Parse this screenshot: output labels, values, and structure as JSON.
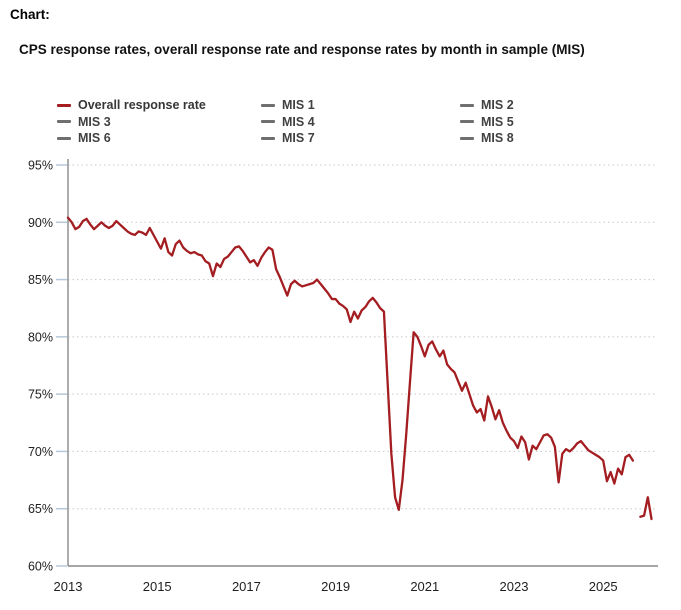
{
  "page": {
    "label": "Chart:"
  },
  "chart": {
    "title": "CPS response rates, overall response rate and response rates by month in sample (MIS)",
    "legend": [
      {
        "label": "Overall response rate",
        "color": "#A31D21",
        "plotted": true
      },
      {
        "label": "MIS 1",
        "color": "#6F6F6F",
        "plotted": false
      },
      {
        "label": "MIS 2",
        "color": "#6F6F6F",
        "plotted": false
      },
      {
        "label": "MIS 3",
        "color": "#6F6F6F",
        "plotted": false
      },
      {
        "label": "MIS 4",
        "color": "#6F6F6F",
        "plotted": false
      },
      {
        "label": "MIS 5",
        "color": "#6F6F6F",
        "plotted": false
      },
      {
        "label": "MIS 6",
        "color": "#6F6F6F",
        "plotted": false
      },
      {
        "label": "MIS 7",
        "color": "#6F6F6F",
        "plotted": false
      },
      {
        "label": "MIS 8",
        "color": "#6F6F6F",
        "plotted": false
      }
    ],
    "colors": {
      "line": "#A31D21",
      "axis": "#898989",
      "gridline": "#C8C8C8",
      "tick_mark": "#B5C7D8",
      "tick_text": "#1F1F1F"
    }
  },
  "chart_data": {
    "type": "line",
    "title": "CPS response rates, overall response rate and response rates by month in sample (MIS)",
    "xlabel": "",
    "ylabel": "",
    "y_unit": "%",
    "ylim": [
      60,
      95
    ],
    "y_ticks": [
      60,
      65,
      70,
      75,
      80,
      85,
      90,
      95
    ],
    "y_tick_labels": [
      "60%",
      "65%",
      "70%",
      "75%",
      "80%",
      "85%",
      "90%",
      "95%"
    ],
    "x_tick_labels": [
      "2013",
      "2015",
      "2017",
      "2019",
      "2021",
      "2023",
      "2025"
    ],
    "x_start": "2013-01",
    "x_end": "2026-02",
    "frequency": "monthly",
    "grid": "dotted horizontal gridlines at each 5%",
    "legend_position": "top",
    "gap_note": "line breaks (no data) at 2025-10",
    "series": [
      {
        "name": "Overall response rate",
        "color": "#A31D21",
        "values": [
          90.4,
          90.0,
          89.4,
          89.6,
          90.1,
          90.3,
          89.8,
          89.4,
          89.7,
          90.0,
          89.7,
          89.5,
          89.7,
          90.1,
          89.8,
          89.5,
          89.2,
          89.0,
          88.9,
          89.2,
          89.1,
          88.9,
          89.5,
          88.9,
          88.3,
          87.7,
          88.6,
          87.4,
          87.1,
          88.1,
          88.4,
          87.8,
          87.5,
          87.3,
          87.4,
          87.2,
          87.1,
          86.6,
          86.4,
          85.3,
          86.4,
          86.1,
          86.8,
          87.0,
          87.4,
          87.8,
          87.9,
          87.5,
          87.0,
          86.5,
          86.7,
          86.2,
          86.9,
          87.4,
          87.8,
          87.6,
          85.9,
          85.2,
          84.4,
          83.6,
          84.6,
          84.9,
          84.6,
          84.4,
          84.5,
          84.6,
          84.7,
          85.0,
          84.6,
          84.2,
          83.8,
          83.3,
          83.3,
          82.9,
          82.7,
          82.4,
          81.3,
          82.2,
          81.6,
          82.3,
          82.6,
          83.1,
          83.4,
          83.0,
          82.5,
          82.2,
          76.0,
          69.8,
          66.0,
          64.9,
          67.5,
          71.5,
          76.0,
          80.4,
          80.0,
          79.2,
          78.3,
          79.3,
          79.6,
          78.9,
          78.3,
          78.8,
          77.6,
          77.2,
          76.9,
          76.1,
          75.3,
          76.0,
          75.0,
          74.0,
          73.4,
          73.7,
          72.7,
          74.8,
          73.9,
          72.8,
          73.6,
          72.5,
          71.8,
          71.2,
          70.9,
          70.3,
          71.3,
          70.8,
          69.3,
          70.5,
          70.2,
          70.8,
          71.4,
          71.5,
          71.2,
          70.4,
          67.3,
          69.8,
          70.2,
          70.0,
          70.3,
          70.7,
          70.9,
          70.5,
          70.1,
          69.9,
          69.7,
          69.5,
          69.2,
          67.4,
          68.2,
          67.2,
          68.5,
          68.0,
          69.5,
          69.7,
          69.2,
          null,
          64.3,
          64.4,
          66.0,
          64.1
        ]
      }
    ]
  }
}
